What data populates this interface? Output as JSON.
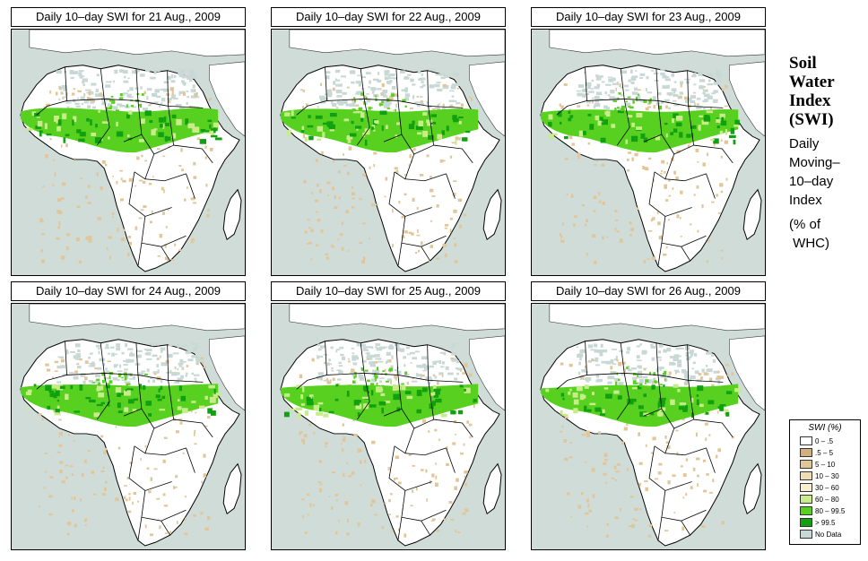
{
  "panels": [
    {
      "title": "Daily 10–day SWI for  21 Aug., 2009",
      "variant": 0
    },
    {
      "title": "Daily 10–day SWI for  22 Aug., 2009",
      "variant": 1
    },
    {
      "title": "Daily 10–day SWI for  23 Aug., 2009",
      "variant": 2
    },
    {
      "title": "Daily 10–day SWI for  24 Aug., 2009",
      "variant": 3
    },
    {
      "title": "Daily 10–day SWI for  25 Aug., 2009",
      "variant": 4
    },
    {
      "title": "Daily 10–day SWI for  26 Aug., 2009",
      "variant": 5
    }
  ],
  "side": {
    "title_lines": [
      "Soil",
      "Water",
      "Index",
      "(SWI)"
    ],
    "subtitle_lines": [
      "Daily",
      "Moving–",
      "10–day",
      "Index"
    ],
    "unit_lines": [
      "(% of",
      " WHC)"
    ]
  },
  "legend": {
    "title": "SWI (%)",
    "items": [
      {
        "label": "0 – .5",
        "color": "#ffffff"
      },
      {
        "label": ".5 – 5",
        "color": "#d2b080"
      },
      {
        "label": "5 – 10",
        "color": "#e2c598"
      },
      {
        "label": "10 – 30",
        "color": "#efdcb4"
      },
      {
        "label": "30 – 60",
        "color": "#f8efce"
      },
      {
        "label": "60 – 80",
        "color": "#c8ec8a"
      },
      {
        "label": "80 – 99.5",
        "color": "#58d020"
      },
      {
        "label": "> 99.5",
        "color": "#10a010"
      },
      {
        "label": "No Data",
        "color": "#c8d8d4"
      }
    ]
  },
  "colors": {
    "ocean": "#cfdcd8",
    "land": "#ffffff",
    "desert_nodata": "#c8d8d4",
    "green_dark": "#10a010",
    "green_mid": "#58d020",
    "green_light": "#c8ec8a",
    "tan": "#e2c598",
    "border": "#000000"
  }
}
